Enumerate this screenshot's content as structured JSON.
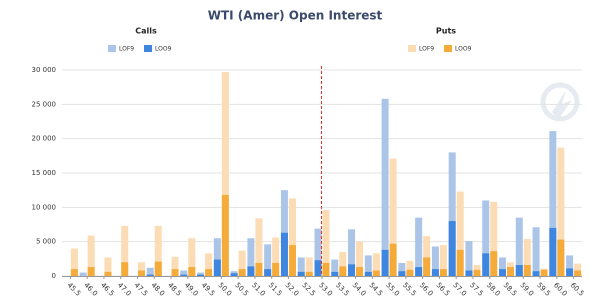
{
  "chart_data": {
    "type": "grouped-overlap-bar",
    "title": "WTI (Amer) Open Interest",
    "categories": [
      "45.5",
      "46.0",
      "46.5",
      "47.0",
      "47.5",
      "48.0",
      "48.5",
      "49.0",
      "49.5",
      "50.0",
      "50.5",
      "51.0",
      "51.5",
      "52.0",
      "52.5",
      "53.0",
      "53.5",
      "54.0",
      "54.5",
      "55.0",
      "55.5",
      "56.0",
      "56.5",
      "57.0",
      "57.5",
      "58.0",
      "58.5",
      "59.0",
      "59.5",
      "60.0",
      "60.5"
    ],
    "groups": [
      {
        "name": "Calls",
        "series": [
          {
            "name": "LOF9",
            "color": "#aac5e7",
            "values": [
              0,
              500,
              0,
              0,
              0,
              1200,
              0,
              800,
              500,
              5500,
              700,
              5500,
              4600,
              12500,
              2700,
              6900,
              2400,
              6800,
              3000,
              25800,
              1900,
              8500,
              4300,
              18000,
              5100,
              11000,
              2700,
              8500,
              7100,
              21100,
              3000
            ]
          },
          {
            "name": "LOO9",
            "color": "#3f86e0",
            "values": [
              0,
              0,
              0,
              0,
              0,
              200,
              0,
              200,
              200,
              2400,
              400,
              1400,
              1000,
              6300,
              600,
              2300,
              600,
              1700,
              600,
              3800,
              700,
              1300,
              1000,
              8000,
              800,
              3300,
              1000,
              1600,
              700,
              7000,
              1100
            ]
          }
        ]
      },
      {
        "name": "Puts",
        "series": [
          {
            "name": "LOF9",
            "color": "#fbdcb4",
            "values": [
              4000,
              5900,
              2700,
              7300,
              2000,
              7300,
              2800,
              5500,
              3300,
              29700,
              3700,
              8400,
              5600,
              11300,
              2700,
              9600,
              3500,
              5000,
              3300,
              17100,
              2200,
              5800,
              4500,
              12300,
              1600,
              10800,
              2000,
              5400,
              1100,
              18700,
              1800
            ]
          },
          {
            "name": "LOO9",
            "color": "#f5ab3a",
            "values": [
              1000,
              1300,
              600,
              2000,
              800,
              2100,
              1000,
              1300,
              1000,
              11800,
              1000,
              1900,
              1900,
              4500,
              600,
              1900,
              1400,
              1300,
              800,
              4700,
              900,
              2700,
              1000,
              3800,
              900,
              3600,
              1300,
              1600,
              900,
              5300,
              800
            ]
          }
        ]
      }
    ],
    "ylim": [
      0,
      30000
    ],
    "yticks": [
      0,
      {
        "value": 5000,
        "label": "5 000"
      },
      {
        "value": 10000,
        "label": "10 000"
      },
      {
        "value": 15000,
        "label": "15 000"
      },
      {
        "value": 20000,
        "label": "20 000"
      },
      {
        "value": 25000,
        "label": "25 000"
      },
      {
        "value": 30000,
        "label": "30 000"
      }
    ],
    "grid": true,
    "reference_line": {
      "category": "53.0",
      "color": "#e03030"
    }
  }
}
